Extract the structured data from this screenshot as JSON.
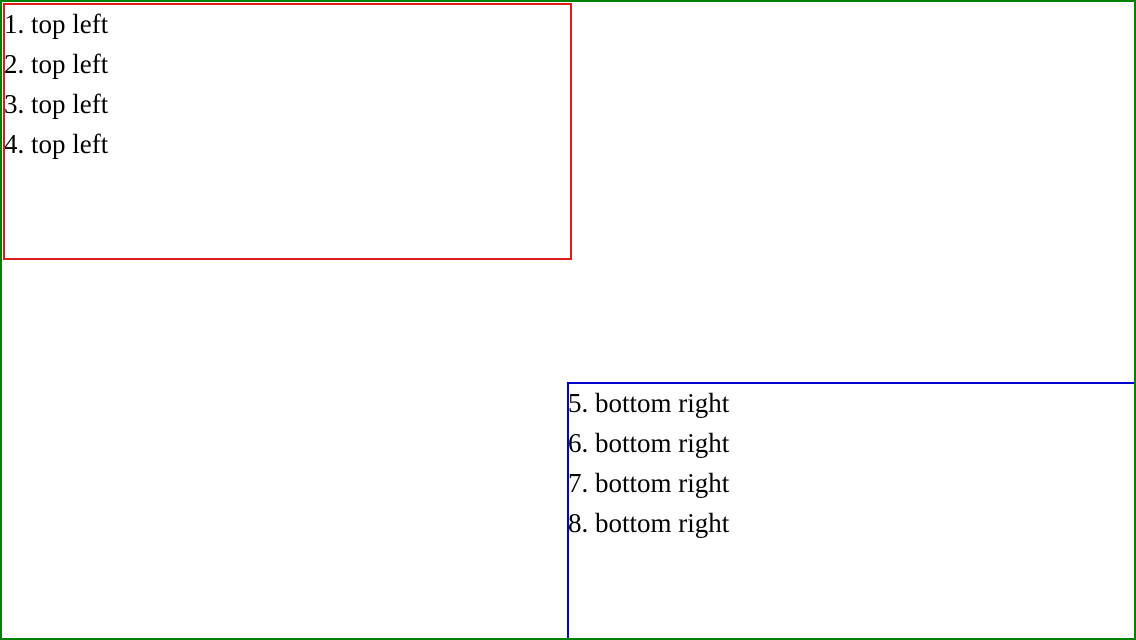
{
  "colors": {
    "outer_border": "#008000",
    "top_left_border": "#e01a1a",
    "bottom_right_border": "#0000cc",
    "text": "#000000",
    "background": "#ffffff"
  },
  "top_left": {
    "lines": [
      "1. top left",
      "2. top left",
      "3. top left",
      "4. top left"
    ]
  },
  "bottom_right": {
    "lines": [
      "5. bottom right",
      "6. bottom right",
      "7. bottom right",
      "8. bottom right"
    ]
  }
}
